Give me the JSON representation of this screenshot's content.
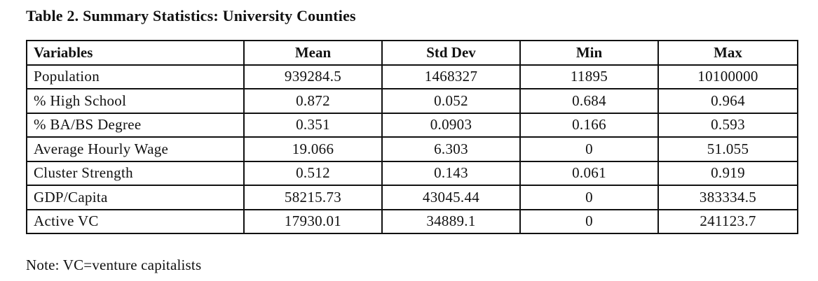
{
  "title": "Table 2. Summary Statistics: University Counties",
  "headers": [
    "Variables",
    "Mean",
    "Std Dev",
    "Min",
    "Max"
  ],
  "rows": [
    [
      "Population",
      "939284.5",
      "1468327",
      "11895",
      "10100000"
    ],
    [
      "% High School",
      "0.872",
      "0.052",
      "0.684",
      "0.964"
    ],
    [
      "% BA/BS Degree",
      "0.351",
      "0.0903",
      "0.166",
      "0.593"
    ],
    [
      "Average Hourly Wage",
      "19.066",
      "6.303",
      "0",
      "51.055"
    ],
    [
      "Cluster Strength",
      "0.512",
      "0.143",
      "0.061",
      "0.919"
    ],
    [
      "GDP/Capita",
      "58215.73",
      "43045.44",
      "0",
      "383334.5"
    ],
    [
      "Active VC",
      "17930.01",
      "34889.1",
      "0",
      "241123.7"
    ]
  ],
  "note": "Note: VC=venture capitalists"
}
